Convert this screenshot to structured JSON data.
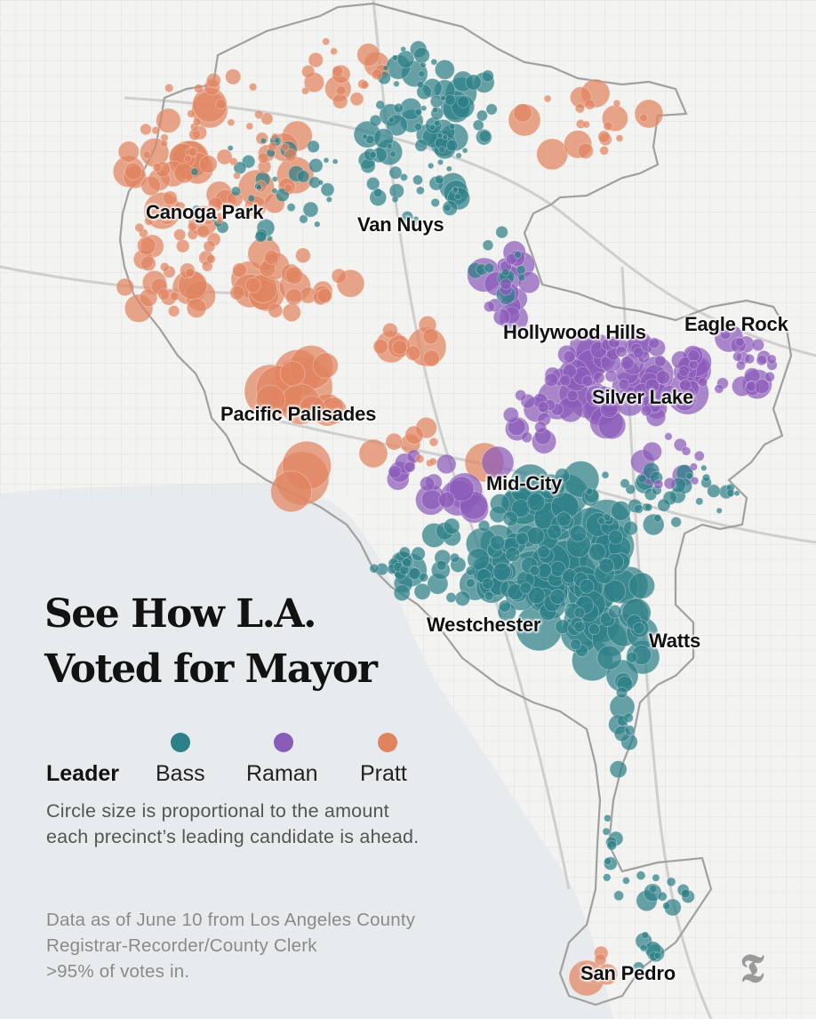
{
  "title": {
    "line1": "See How L.A.",
    "line2": "Voted for Mayor"
  },
  "legend": {
    "heading": "Leader",
    "items": [
      {
        "label": "Bass",
        "color": "#2e8088"
      },
      {
        "label": "Raman",
        "color": "#8a5cba"
      },
      {
        "label": "Pratt",
        "color": "#e0835f"
      }
    ]
  },
  "size_note": {
    "line1": "Circle size is proportional to the amount",
    "line2": "each precinct’s leading candidate is ahead."
  },
  "source_note": {
    "line1": "Data as of June 10 from Los Angeles County",
    "line2": "Registrar-Recorder/County Clerk",
    "line3": ">95% of votes in."
  },
  "places": {
    "canoga_park": "Canoga Park",
    "van_nuys": "Van Nuys",
    "hollywood_hills": "Hollywood Hills",
    "eagle_rock": "Eagle Rock",
    "silver_lake": "Silver Lake",
    "pacific_palisades": "Pacific Palisades",
    "mid_city": "Mid-City",
    "westchester": "Westchester",
    "watts": "Watts",
    "san_pedro": "San Pedro"
  },
  "logo": {
    "icon": "nyt-logo-icon",
    "glyph": "𝕿"
  },
  "colors": {
    "bass": "#2e8088",
    "raman": "#8a5cba",
    "pratt": "#e0835f",
    "ocean": "#e9ecee",
    "land": "#f6f6f4",
    "streets": "#dcdcdc",
    "boundary": "#9e9e9e"
  }
}
